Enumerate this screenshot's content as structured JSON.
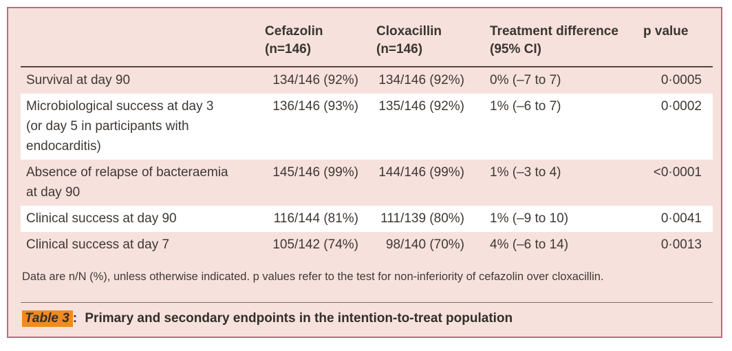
{
  "colors": {
    "panel_background": "#f6e1dc",
    "panel_border": "#c4657e",
    "stripe_white": "#ffffff",
    "header_rule": "#4d4843",
    "caption_rule": "#7b6f71",
    "text": "#3e3834",
    "caption_highlight": "#f18a21"
  },
  "header": {
    "cefazolin": {
      "line1": "Cefazolin",
      "line2": "(n=146)"
    },
    "cloxacillin": {
      "line1": "Cloxacillin",
      "line2": "(n=146)"
    },
    "difference": {
      "line1": "Treatment difference",
      "line2": "(95% CI)"
    },
    "p": {
      "line1": "p value"
    }
  },
  "rows": [
    {
      "endpoint_lines": [
        "Survival at day 90"
      ],
      "cefazolin": "134/146 (92%)",
      "cloxacillin": "134/146 (92%)",
      "difference": "0% (–7 to 7)",
      "p": "0·0005"
    },
    {
      "endpoint_lines": [
        "Microbiological success at day 3",
        "(or day 5 in participants with",
        "endocarditis)"
      ],
      "cefazolin": "136/146 (93%)",
      "cloxacillin": "135/146 (92%)",
      "difference": "1% (–6 to 7)",
      "p": "0·0002"
    },
    {
      "endpoint_lines": [
        "Absence of relapse of bacteraemia",
        "at day 90"
      ],
      "cefazolin": "145/146 (99%)",
      "cloxacillin": "144/146 (99%)",
      "difference": "1% (–3 to 4)",
      "p": "<0·0001"
    },
    {
      "endpoint_lines": [
        "Clinical success at day 90"
      ],
      "cefazolin": "116/144 (81%)",
      "cloxacillin": "111/139 (80%)",
      "difference": "1% (–9 to 10)",
      "p": "0·0041"
    },
    {
      "endpoint_lines": [
        "Clinical success at day 7"
      ],
      "cefazolin": "105/142 (74%)",
      "cloxacillin": "98/140 (70%)",
      "difference": "4% (–6 to 14)",
      "p": "0·0013"
    }
  ],
  "footnote": "Data are n/N (%), unless otherwise indicated. p values refer to the test for non-inferiority of cefazolin over cloxacillin.",
  "caption": {
    "label": "Table 3",
    "separator": ":",
    "text": "Primary and secondary endpoints in the intention-to-treat population"
  }
}
